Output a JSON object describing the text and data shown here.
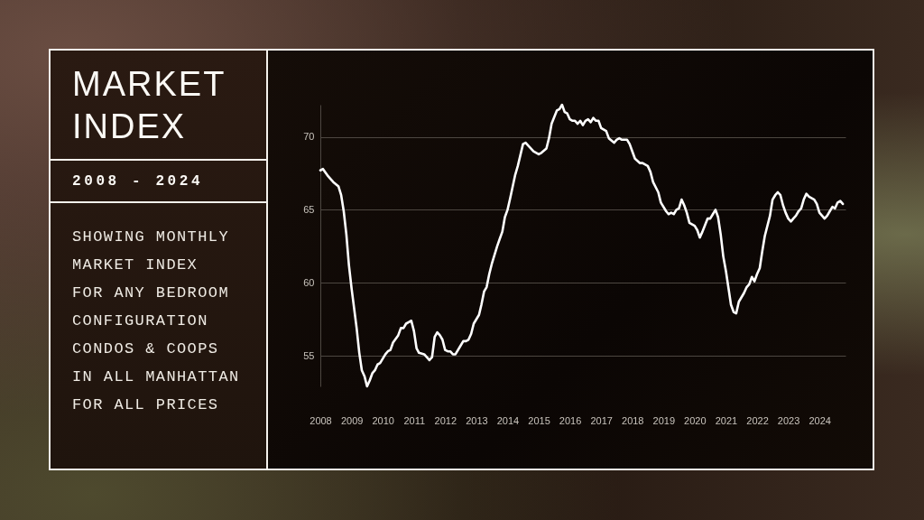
{
  "chart_data": {
    "type": "line",
    "title": "MARKET INDEX",
    "subtitle": "2008 - 2024",
    "annotations": [
      "SHOWING MONTHLY\nMARKET INDEX\nFOR ANY BEDROOM\nCONFIGURATION\nCONDOS & COOPS\nIN ALL MANHATTAN\nFOR ALL PRICES"
    ],
    "x": [
      "2008-01",
      "2008-02",
      "2008-04",
      "2008-05",
      "2008-06",
      "2008-08",
      "2008-09",
      "2008-10",
      "2008-11",
      "2008-12",
      "2009-01",
      "2009-03",
      "2009-04",
      "2009-05",
      "2009-06",
      "2009-07",
      "2009-08",
      "2009-09",
      "2009-10",
      "2009-11",
      "2009-12",
      "2010-02",
      "2010-03",
      "2010-04",
      "2010-05",
      "2010-07",
      "2010-08",
      "2010-09",
      "2010-10",
      "2010-11",
      "2010-12",
      "2011-01",
      "2011-02",
      "2011-03",
      "2011-05",
      "2011-06",
      "2011-07",
      "2011-08",
      "2011-09",
      "2011-10",
      "2011-11",
      "2011-12",
      "2012-01",
      "2012-02",
      "2012-03",
      "2012-04",
      "2012-05",
      "2012-07",
      "2012-08",
      "2012-09",
      "2012-10",
      "2012-11",
      "2012-12",
      "2013-02",
      "2013-03",
      "2013-04",
      "2013-05",
      "2013-06",
      "2013-07",
      "2013-09",
      "2013-10",
      "2013-11",
      "2013-12",
      "2014-01",
      "2014-02",
      "2014-04",
      "2014-05",
      "2014-07",
      "2014-08",
      "2014-09",
      "2014-11",
      "2015-01",
      "2015-02",
      "2015-04",
      "2015-05",
      "2015-06",
      "2015-08",
      "2015-09",
      "2015-10",
      "2015-11",
      "2015-12",
      "2016-01",
      "2016-02",
      "2016-03",
      "2016-04",
      "2016-05",
      "2016-06",
      "2016-07",
      "2016-08",
      "2016-09",
      "2016-10",
      "2016-11",
      "2016-12",
      "2017-01",
      "2017-03",
      "2017-04",
      "2017-06",
      "2017-07",
      "2017-08",
      "2017-09",
      "2017-11",
      "2017-12",
      "2018-01",
      "2018-02",
      "2018-04",
      "2018-05",
      "2018-07",
      "2018-08",
      "2018-09",
      "2018-11",
      "2018-12",
      "2019-02",
      "2019-03",
      "2019-04",
      "2019-05",
      "2019-06",
      "2019-07",
      "2019-08",
      "2019-09",
      "2019-10",
      "2019-11",
      "2020-01",
      "2020-02",
      "2020-03",
      "2020-04",
      "2020-06",
      "2020-07",
      "2020-08",
      "2020-09",
      "2020-10",
      "2020-11",
      "2020-12",
      "2021-01",
      "2021-02",
      "2021-03",
      "2021-04",
      "2021-05",
      "2021-06",
      "2021-08",
      "2021-09",
      "2021-10",
      "2021-11",
      "2021-12",
      "2022-01",
      "2022-02",
      "2022-03",
      "2022-04",
      "2022-06",
      "2022-07",
      "2022-08",
      "2022-09",
      "2022-10",
      "2022-11",
      "2022-12",
      "2023-01",
      "2023-02",
      "2023-03",
      "2023-04",
      "2023-05",
      "2023-06",
      "2023-07",
      "2023-08",
      "2023-09",
      "2023-11",
      "2023-12",
      "2024-01",
      "2024-03",
      "2024-04",
      "2024-05",
      "2024-06",
      "2024-07",
      "2024-08",
      "2024-09",
      "2024-10"
    ],
    "series": [
      {
        "color": "#ffffff",
        "values": [
          67.7,
          67.8,
          67.3,
          67.1,
          66.9,
          66.6,
          66.0,
          64.9,
          63.3,
          61.2,
          59.6,
          56.9,
          55.2,
          54.0,
          53.6,
          52.9,
          53.3,
          53.8,
          54.0,
          54.4,
          54.5,
          55.1,
          55.3,
          55.4,
          55.9,
          56.4,
          56.9,
          56.9,
          57.2,
          57.3,
          57.4,
          56.7,
          55.5,
          55.2,
          55.1,
          54.9,
          54.7,
          54.9,
          56.3,
          56.6,
          56.4,
          56.1,
          55.4,
          55.3,
          55.3,
          55.1,
          55.1,
          55.7,
          56.0,
          56.0,
          56.1,
          56.5,
          57.2,
          57.8,
          58.5,
          59.4,
          59.7,
          60.6,
          61.3,
          62.5,
          63.0,
          63.5,
          64.5,
          65.0,
          65.8,
          67.4,
          68.0,
          69.5,
          69.6,
          69.4,
          69.0,
          68.8,
          68.9,
          69.2,
          69.9,
          70.9,
          71.8,
          71.9,
          72.2,
          71.7,
          71.6,
          71.2,
          71.1,
          71.1,
          70.9,
          71.1,
          70.8,
          71.1,
          71.2,
          71.0,
          71.3,
          71.1,
          71.1,
          70.6,
          70.4,
          69.9,
          69.6,
          69.8,
          69.9,
          69.8,
          69.8,
          69.5,
          69.0,
          68.5,
          68.2,
          68.2,
          68.0,
          67.6,
          66.9,
          66.2,
          65.5,
          64.9,
          64.7,
          64.8,
          64.7,
          65.0,
          65.1,
          65.7,
          65.3,
          64.8,
          64.1,
          63.9,
          63.6,
          63.1,
          63.5,
          64.4,
          64.4,
          64.7,
          65.0,
          64.5,
          63.3,
          61.8,
          60.8,
          59.6,
          58.5,
          58.0,
          57.9,
          58.7,
          59.3,
          59.7,
          59.9,
          60.4,
          60.1,
          60.6,
          61.0,
          62.1,
          63.2,
          64.6,
          65.7,
          66.0,
          66.2,
          66.0,
          65.3,
          64.8,
          64.4,
          64.2,
          64.4,
          64.6,
          64.9,
          65.1,
          65.7,
          66.1,
          65.9,
          65.7,
          65.4,
          64.8,
          64.4,
          64.6,
          64.9,
          65.2,
          65.1,
          65.5,
          65.6,
          65.4
        ]
      }
    ],
    "xlim": [
      "2008-01",
      "2024-11"
    ],
    "xticks": [
      "2008",
      "2009",
      "2010",
      "2011",
      "2012",
      "2013",
      "2014",
      "2015",
      "2016",
      "2017",
      "2018",
      "2019",
      "2020",
      "2021",
      "2022",
      "2023",
      "2024"
    ],
    "ylim": [
      52.9,
      72.2
    ],
    "yticks": [
      55,
      60,
      65,
      70
    ],
    "grid": "y"
  }
}
